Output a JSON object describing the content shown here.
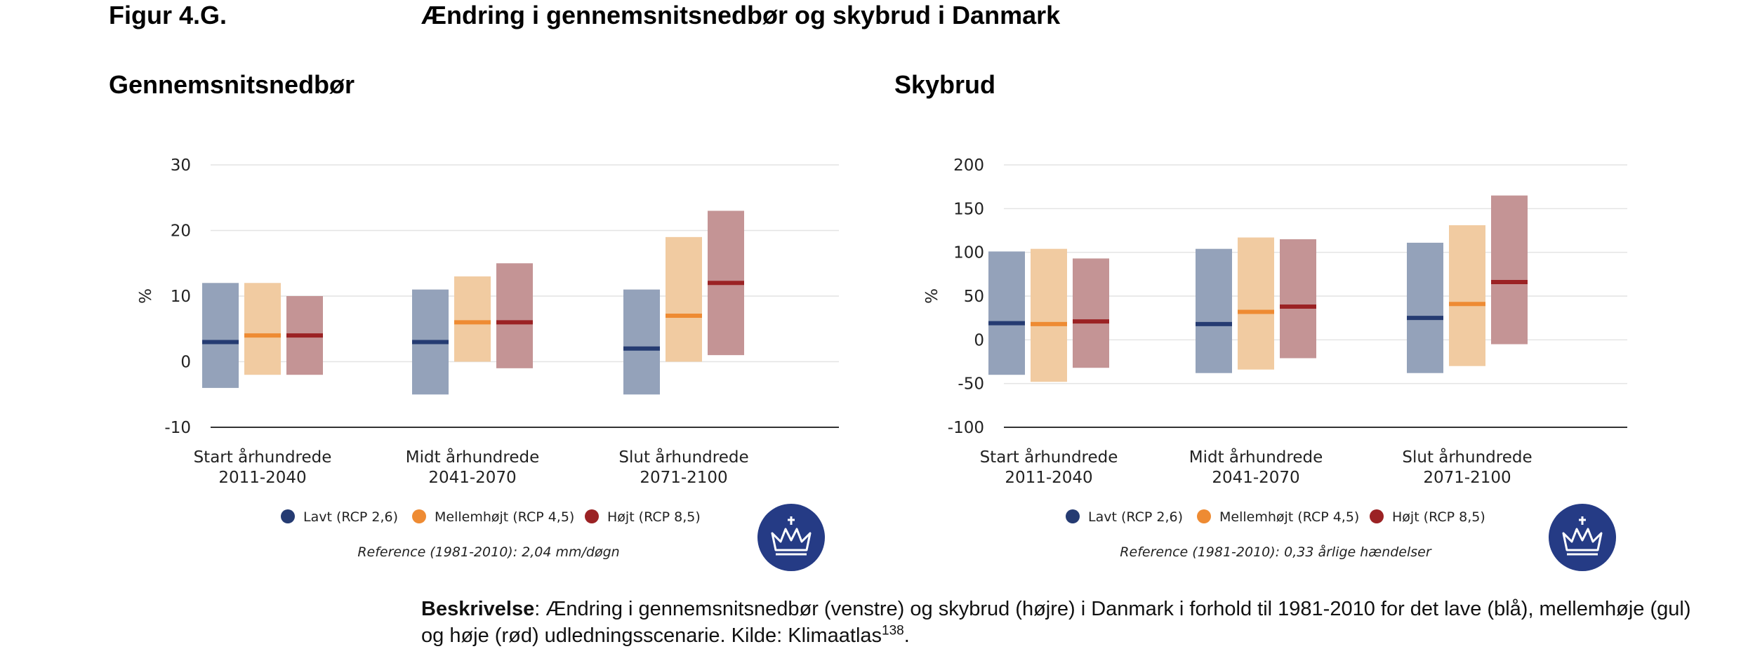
{
  "figure": {
    "label": "Figur 4.G.",
    "title": "Ændring i gennemsnitsnedbør og skybrud i Danmark"
  },
  "legend": [
    {
      "name": "Lavt (RCP 2,6)",
      "color": "#253b72"
    },
    {
      "name": "Mellemhøjt (RCP 4,5)",
      "color": "#ee8b33"
    },
    {
      "name": "Højt (RCP 8,5)",
      "color": "#9b2224"
    }
  ],
  "colors": {
    "low_bar": "#94a2ba",
    "low_median": "#253b72",
    "mid_bar": "#f1cba1",
    "mid_median": "#ee8b33",
    "high_bar": "#c49495",
    "high_median": "#9b2224",
    "grid": "#e4e4e4",
    "axis": "#333333",
    "logo": "#253b85"
  },
  "chart_data": [
    {
      "type": "bar",
      "title": "Gennemsnitsnedbør",
      "ylabel": "%",
      "xlabel": "",
      "ylim": [
        -10,
        30
      ],
      "yticks": [
        -10,
        0,
        10,
        20,
        30
      ],
      "categories": [
        [
          "Start århundrede",
          "2011-2040"
        ],
        [
          "Midt århundrede",
          "2041-2070"
        ],
        [
          "Slut århundrede",
          "2071-2100"
        ]
      ],
      "series": [
        {
          "name": "Lavt (RCP 2,6)",
          "low": [
            -4,
            -5,
            -5
          ],
          "high": [
            12,
            11,
            11
          ],
          "median": [
            3,
            3,
            2
          ]
        },
        {
          "name": "Mellemhøjt (RCP 4,5)",
          "low": [
            -2,
            0,
            0
          ],
          "high": [
            12,
            13,
            19
          ],
          "median": [
            4,
            6,
            7
          ]
        },
        {
          "name": "Højt (RCP 8,5)",
          "low": [
            -2,
            -1,
            1
          ],
          "high": [
            10,
            15,
            23
          ],
          "median": [
            4,
            6,
            12
          ]
        }
      ],
      "reference": "Reference (1981-2010): 2,04 mm/døgn"
    },
    {
      "type": "bar",
      "title": "Skybrud",
      "ylabel": "%",
      "xlabel": "",
      "ylim": [
        -100,
        200
      ],
      "yticks": [
        -100,
        -50,
        0,
        50,
        100,
        150,
        200
      ],
      "categories": [
        [
          "Start århundrede",
          "2011-2040"
        ],
        [
          "Midt århundrede",
          "2041-2070"
        ],
        [
          "Slut århundrede",
          "2071-2100"
        ]
      ],
      "series": [
        {
          "name": "Lavt (RCP 2,6)",
          "low": [
            -40,
            -38,
            -38
          ],
          "high": [
            101,
            104,
            111
          ],
          "median": [
            19,
            18,
            25
          ]
        },
        {
          "name": "Mellemhøjt (RCP 4,5)",
          "low": [
            -48,
            -34,
            -30
          ],
          "high": [
            104,
            117,
            131
          ],
          "median": [
            18,
            32,
            41
          ]
        },
        {
          "name": "Højt (RCP 8,5)",
          "low": [
            -32,
            -21,
            -5
          ],
          "high": [
            93,
            115,
            165
          ],
          "median": [
            21,
            38,
            66
          ]
        }
      ],
      "reference": "Reference (1981-2010): 0,33 årlige hændelser"
    }
  ],
  "description": {
    "label": "Beskrivelse",
    "text": ": Ændring i gennemsnitsnedbør (venstre) og skybrud (højre) i Danmark i forhold til 1981-2010 for det lave (blå), mellemhøje (gul) og høje (rød) udledningsscenarie. Kilde: Klimaatlas",
    "footnote": "138",
    "end": "."
  }
}
